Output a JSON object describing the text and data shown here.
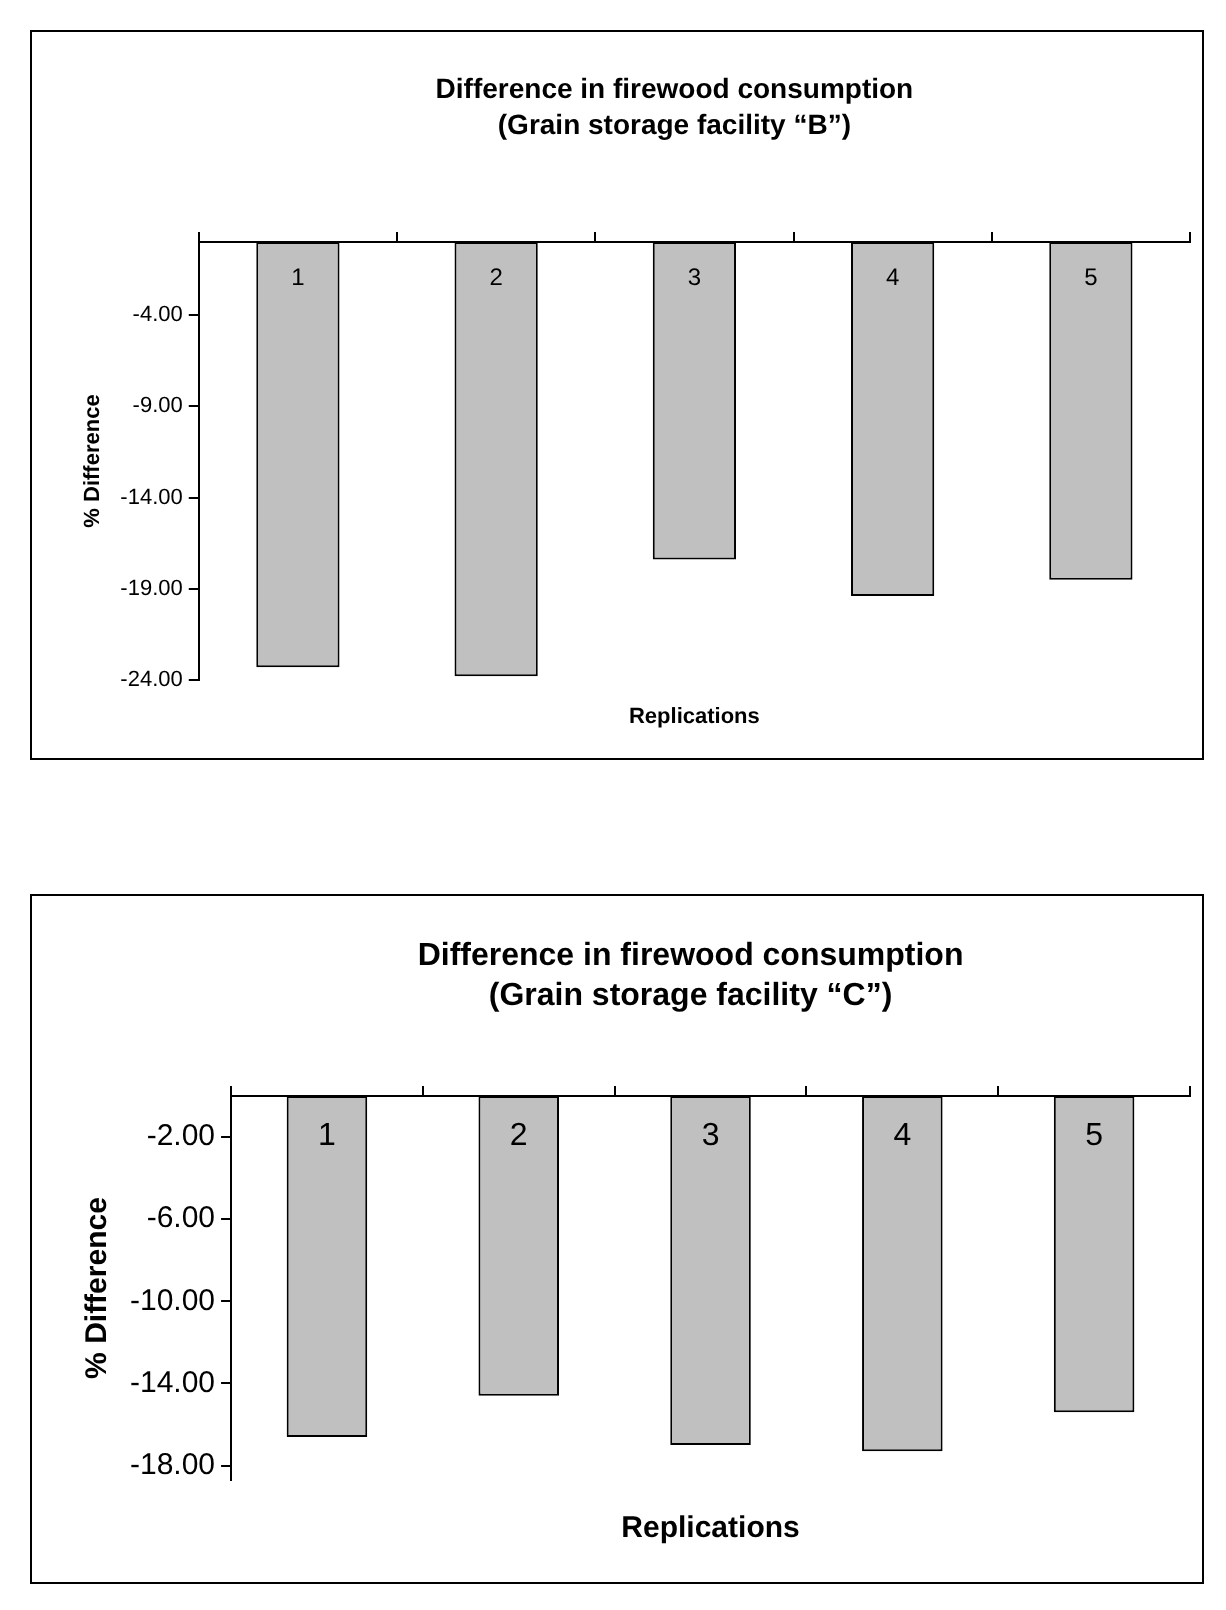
{
  "chart_data": [
    {
      "type": "bar",
      "title": "Difference in firewood consumption\n(Grain storage facility “B”)",
      "xlabel": "Replications",
      "ylabel": "% Difference",
      "categories": [
        "1",
        "2",
        "3",
        "4",
        "5"
      ],
      "values": [
        -23.3,
        -23.8,
        -17.4,
        -19.4,
        -18.5
      ],
      "color": "#c0c0c0",
      "ylim": [
        -24,
        0
      ],
      "yticks": [
        {
          "value": -4,
          "label": "-4.00"
        },
        {
          "value": -9,
          "label": "-9.00"
        },
        {
          "value": -14,
          "label": "-14.00"
        },
        {
          "value": -19,
          "label": "-19.00"
        },
        {
          "value": -24,
          "label": "-24.00"
        }
      ],
      "grid": false,
      "legend": false
    },
    {
      "type": "bar",
      "title": "Difference in firewood consumption\n(Grain storage facility “C”)",
      "xlabel": "Replications",
      "ylabel": "% Difference",
      "categories": [
        "1",
        "2",
        "3",
        "4",
        "5"
      ],
      "values": [
        -16.6,
        -14.6,
        -17.0,
        -17.3,
        -15.4
      ],
      "color": "#c0c0c0",
      "ylim": [
        -18.7,
        0
      ],
      "yticks": [
        {
          "value": -2,
          "label": "-2.00"
        },
        {
          "value": -6,
          "label": "-6.00"
        },
        {
          "value": -10,
          "label": "-10.00"
        },
        {
          "value": -14,
          "label": "-14.00"
        },
        {
          "value": -18,
          "label": "-18.00"
        }
      ],
      "grid": false,
      "legend": false
    }
  ]
}
